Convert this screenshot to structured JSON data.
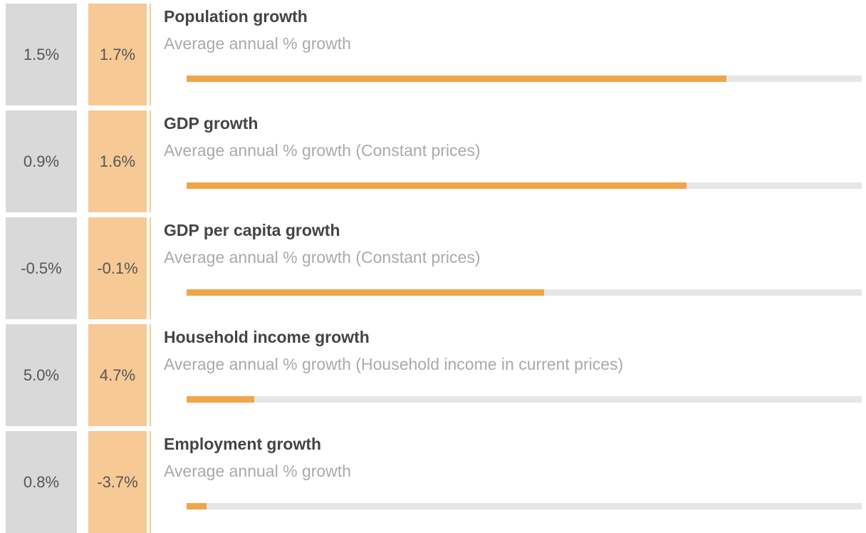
{
  "rows": [
    {
      "value_a": "1.5%",
      "value_b": "1.7%",
      "title": "Population growth",
      "subtitle": "Average annual % growth",
      "bar": 80
    },
    {
      "value_a": "0.9%",
      "value_b": "1.6%",
      "title": "GDP growth",
      "subtitle": "Average annual % growth (Constant prices)",
      "bar": 74
    },
    {
      "value_a": "-0.5%",
      "value_b": "-0.1%",
      "title": "GDP per capita growth",
      "subtitle": "Average annual % growth (Constant prices)",
      "bar": 53
    },
    {
      "value_a": "5.0%",
      "value_b": "4.7%",
      "title": "Household income growth",
      "subtitle": "Average annual % growth (Household income in current prices)",
      "bar": 10
    },
    {
      "value_a": "0.8%",
      "value_b": "-3.7%",
      "title": "Employment growth",
      "subtitle": "Average annual % growth",
      "bar": 3
    }
  ],
  "bar_range": [
    0,
    100
  ],
  "bar_color": "#f0a54a"
}
